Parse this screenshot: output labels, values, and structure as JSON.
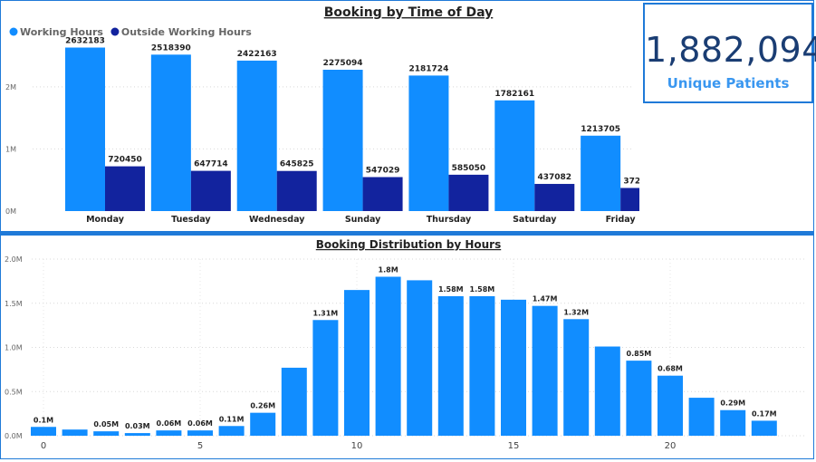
{
  "colors": {
    "working": "#118dff",
    "outside": "#12239e",
    "accent": "#1f7ad8",
    "kpi_value": "#1a3d73",
    "kpi_label": "#3a97f0"
  },
  "kpi": {
    "value": "1,882,094",
    "label": "Unique Patients"
  },
  "chart_data": [
    {
      "type": "bar",
      "title": "Booking by Time of Day",
      "categories": [
        "Monday",
        "Tuesday",
        "Wednesday",
        "Sunday",
        "Thursday",
        "Saturday",
        "Friday"
      ],
      "series": [
        {
          "name": "Working Hours",
          "values": [
            2632183,
            2518390,
            2422163,
            2275094,
            2181724,
            1782161,
            1213705
          ]
        },
        {
          "name": "Outside Working Hours",
          "values": [
            720450,
            647714,
            645825,
            547029,
            585050,
            437082,
            372256
          ]
        }
      ],
      "yticks": [
        {
          "value": 0,
          "label": "0M"
        },
        {
          "value": 1000000,
          "label": "1M"
        },
        {
          "value": 2000000,
          "label": "2M"
        }
      ],
      "ylim": [
        0,
        2800000
      ],
      "legend": "top-left",
      "grid": true
    },
    {
      "type": "bar",
      "title": "Booking Distribution by Hours",
      "x": [
        0,
        1,
        2,
        3,
        4,
        5,
        6,
        7,
        8,
        9,
        10,
        11,
        12,
        13,
        14,
        15,
        16,
        17,
        18,
        19,
        20,
        21,
        22,
        23
      ],
      "values": [
        0.1,
        0.07,
        0.05,
        0.03,
        0.06,
        0.06,
        0.11,
        0.26,
        0.77,
        1.31,
        1.65,
        1.8,
        1.76,
        1.58,
        1.58,
        1.54,
        1.47,
        1.32,
        1.01,
        0.85,
        0.68,
        0.43,
        0.29,
        0.17
      ],
      "value_labels": [
        "0.1M",
        "",
        "0.05M",
        "0.03M",
        "0.06M",
        "0.06M",
        "0.11M",
        "0.26M",
        "",
        "1.31M",
        "",
        "1.8M",
        "",
        "1.58M",
        "1.58M",
        "",
        "1.47M",
        "1.32M",
        "",
        "0.85M",
        "0.68M",
        "",
        "0.29M",
        "0.17M"
      ],
      "xticks": [
        {
          "value": 0,
          "label": "0"
        },
        {
          "value": 5,
          "label": "5"
        },
        {
          "value": 10,
          "label": "10"
        },
        {
          "value": 15,
          "label": "15"
        },
        {
          "value": 20,
          "label": "20"
        }
      ],
      "yticks": [
        {
          "value": 0,
          "label": "0.0M"
        },
        {
          "value": 0.5,
          "label": "0.5M"
        },
        {
          "value": 1.0,
          "label": "1.0M"
        },
        {
          "value": 1.5,
          "label": "1.5M"
        },
        {
          "value": 2.0,
          "label": "2.0M"
        }
      ],
      "ylim": [
        0,
        2.0
      ],
      "grid": true
    }
  ]
}
